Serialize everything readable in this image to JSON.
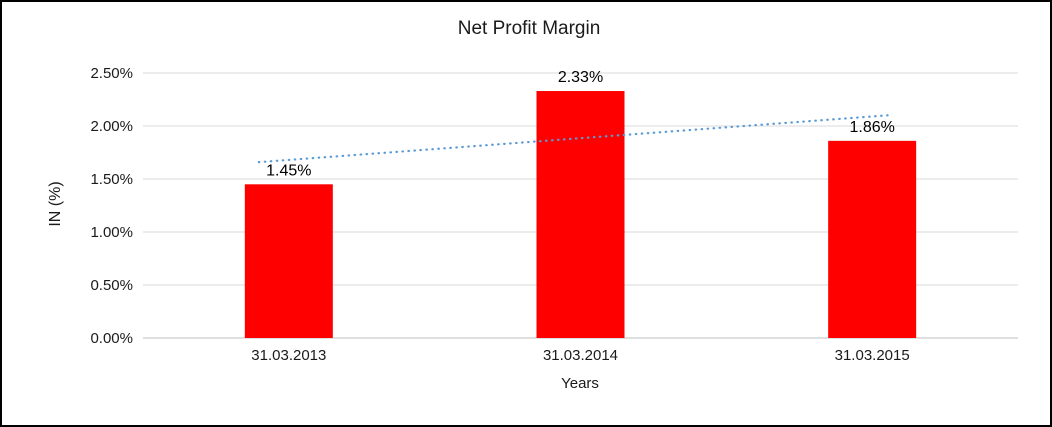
{
  "chart_data": {
    "type": "bar",
    "title": "Net Profit Margin",
    "xlabel": "Years",
    "ylabel": "IN (%)",
    "categories": [
      "31.03.2013",
      "31.03.2014",
      "31.03.2015"
    ],
    "values": [
      1.45,
      2.33,
      1.86
    ],
    "data_labels": [
      "1.45%",
      "2.33%",
      "1.86%"
    ],
    "ylim": [
      0,
      2.5
    ],
    "ytick_step": 0.5,
    "ytick_labels": [
      "0.00%",
      "0.50%",
      "1.00%",
      "1.50%",
      "2.00%",
      "2.50%"
    ],
    "grid": true,
    "legend": "none",
    "colors": {
      "bar": "#FF0000",
      "gridline": "#D9D9D9",
      "axis_line": "#BFBFBF",
      "trendline": "#5B9BD5",
      "text": "#1a1a1a",
      "data_label_text": "#000000",
      "frame_border": "#000000",
      "background": "#FFFFFF"
    },
    "trendline": {
      "type": "linear",
      "style": "dotted",
      "start_value": 1.68,
      "end_value": 2.09
    }
  }
}
